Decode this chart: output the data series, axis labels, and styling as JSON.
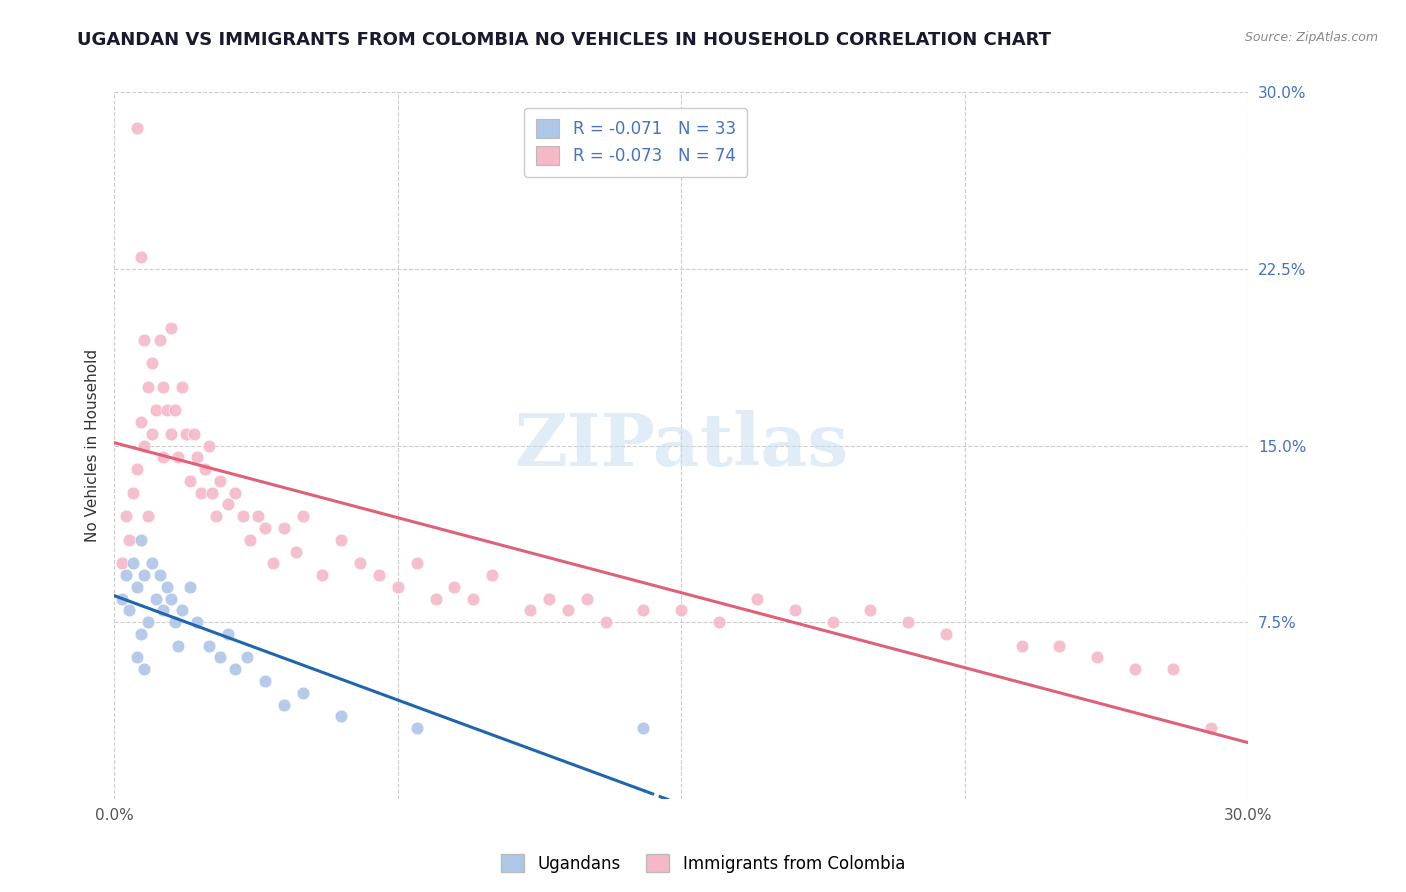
{
  "title": "UGANDAN VS IMMIGRANTS FROM COLOMBIA NO VEHICLES IN HOUSEHOLD CORRELATION CHART",
  "source": "Source: ZipAtlas.com",
  "ylabel": "No Vehicles in Household",
  "xlim": [
    0.0,
    0.3
  ],
  "ylim": [
    0.0,
    0.3
  ],
  "ytick_values": [
    0.075,
    0.15,
    0.225,
    0.3
  ],
  "ytick_labels": [
    "7.5%",
    "15.0%",
    "22.5%",
    "30.0%"
  ],
  "xtick_values": [
    0.0,
    0.075,
    0.15,
    0.225,
    0.3
  ],
  "xtick_labels": [
    "0.0%",
    "",
    "",
    "",
    "30.0%"
  ],
  "grid_color": "#cccccc",
  "background_color": "#ffffff",
  "ugandan_color": "#aec6e8",
  "colombia_color": "#f4b8c8",
  "ugandan_line_color": "#2166ac",
  "colombia_line_color": "#e0607a",
  "legend_text_color": "#4472C4",
  "ugandan_r": -0.071,
  "ugandan_n": 33,
  "colombia_r": -0.073,
  "colombia_n": 74,
  "legend_label_1": "Ugandans",
  "legend_label_2": "Immigrants from Colombia",
  "watermark": "ZIPatlas",
  "ugandan_x": [
    0.002,
    0.003,
    0.004,
    0.005,
    0.006,
    0.006,
    0.007,
    0.007,
    0.008,
    0.008,
    0.009,
    0.01,
    0.011,
    0.012,
    0.013,
    0.014,
    0.015,
    0.016,
    0.017,
    0.018,
    0.02,
    0.022,
    0.025,
    0.028,
    0.03,
    0.032,
    0.035,
    0.04,
    0.045,
    0.05,
    0.06,
    0.08,
    0.14
  ],
  "ugandan_y": [
    0.085,
    0.095,
    0.08,
    0.1,
    0.09,
    0.06,
    0.11,
    0.07,
    0.095,
    0.055,
    0.075,
    0.1,
    0.085,
    0.095,
    0.08,
    0.09,
    0.085,
    0.075,
    0.065,
    0.08,
    0.09,
    0.075,
    0.065,
    0.06,
    0.07,
    0.055,
    0.06,
    0.05,
    0.04,
    0.045,
    0.035,
    0.03,
    0.03
  ],
  "colombia_x": [
    0.002,
    0.003,
    0.004,
    0.005,
    0.006,
    0.006,
    0.007,
    0.007,
    0.008,
    0.008,
    0.009,
    0.009,
    0.01,
    0.01,
    0.011,
    0.012,
    0.013,
    0.013,
    0.014,
    0.015,
    0.015,
    0.016,
    0.017,
    0.018,
    0.019,
    0.02,
    0.021,
    0.022,
    0.023,
    0.024,
    0.025,
    0.026,
    0.027,
    0.028,
    0.03,
    0.032,
    0.034,
    0.036,
    0.038,
    0.04,
    0.042,
    0.045,
    0.048,
    0.05,
    0.055,
    0.06,
    0.065,
    0.07,
    0.075,
    0.08,
    0.085,
    0.09,
    0.095,
    0.1,
    0.11,
    0.115,
    0.12,
    0.125,
    0.13,
    0.14,
    0.15,
    0.16,
    0.17,
    0.18,
    0.19,
    0.2,
    0.21,
    0.22,
    0.24,
    0.25,
    0.26,
    0.27,
    0.28,
    0.29
  ],
  "colombia_y": [
    0.1,
    0.12,
    0.11,
    0.13,
    0.285,
    0.14,
    0.23,
    0.16,
    0.195,
    0.15,
    0.175,
    0.12,
    0.185,
    0.155,
    0.165,
    0.195,
    0.175,
    0.145,
    0.165,
    0.2,
    0.155,
    0.165,
    0.145,
    0.175,
    0.155,
    0.135,
    0.155,
    0.145,
    0.13,
    0.14,
    0.15,
    0.13,
    0.12,
    0.135,
    0.125,
    0.13,
    0.12,
    0.11,
    0.12,
    0.115,
    0.1,
    0.115,
    0.105,
    0.12,
    0.095,
    0.11,
    0.1,
    0.095,
    0.09,
    0.1,
    0.085,
    0.09,
    0.085,
    0.095,
    0.08,
    0.085,
    0.08,
    0.085,
    0.075,
    0.08,
    0.08,
    0.075,
    0.085,
    0.08,
    0.075,
    0.08,
    0.075,
    0.07,
    0.065,
    0.065,
    0.06,
    0.055,
    0.055,
    0.03
  ]
}
